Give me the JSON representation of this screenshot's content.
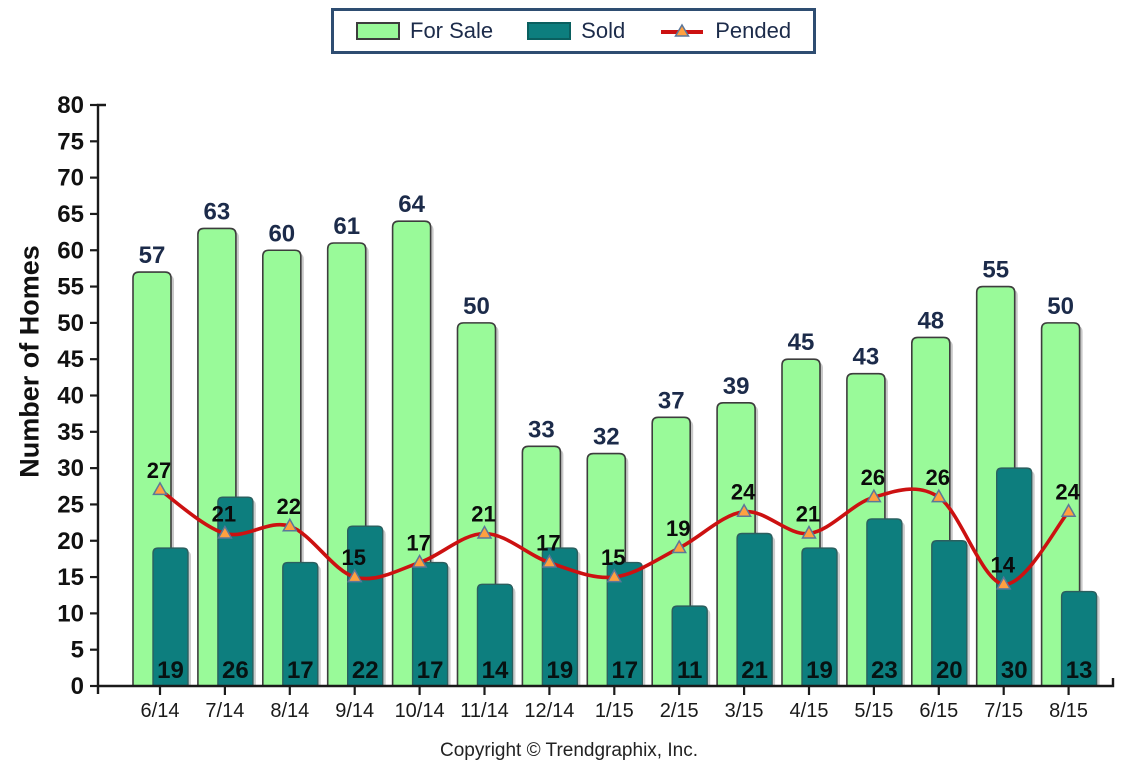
{
  "y_axis_title": "Number of Homes",
  "copyright": "Copyright © Trendgraphix, Inc.",
  "colors": {
    "for_sale_fill": "#99FA99",
    "for_sale_border": "#3d3d3d",
    "sold_fill": "#0D7E7E",
    "sold_border": "#2b5f5f",
    "pended_line": "#CC1111",
    "marker_fill": "#FFA040",
    "marker_border": "#5C7799",
    "for_sale_label": "#1c2b4a",
    "sold_label": "#071212",
    "pended_label": "#0b0b0b",
    "axis": "#1a1a1a",
    "legend_border": "#2E4D71",
    "bar_shadow": "#9a9a9a"
  },
  "chart_data": {
    "type": "bar",
    "title": "",
    "xlabel": "",
    "ylabel": "Number of Homes",
    "ylim": [
      0,
      80
    ],
    "ytick_step": 5,
    "grid": false,
    "legend_position": "top-center",
    "categories": [
      "6/14",
      "7/14",
      "8/14",
      "9/14",
      "10/14",
      "11/14",
      "12/14",
      "1/15",
      "2/15",
      "3/15",
      "4/15",
      "5/15",
      "6/15",
      "7/15",
      "8/15"
    ],
    "series": [
      {
        "name": "For Sale",
        "type": "bar",
        "color": "#99FA99",
        "values": [
          57,
          63,
          60,
          61,
          64,
          50,
          33,
          32,
          37,
          39,
          45,
          43,
          48,
          55,
          50
        ]
      },
      {
        "name": "Sold",
        "type": "bar",
        "color": "#0D7E7E",
        "values": [
          19,
          26,
          17,
          22,
          17,
          14,
          19,
          17,
          11,
          21,
          19,
          23,
          20,
          30,
          13
        ]
      },
      {
        "name": "Pended",
        "type": "line",
        "color": "#CC1111",
        "values": [
          27,
          21,
          22,
          15,
          17,
          21,
          17,
          15,
          19,
          24,
          21,
          26,
          26,
          14,
          24
        ]
      }
    ]
  }
}
